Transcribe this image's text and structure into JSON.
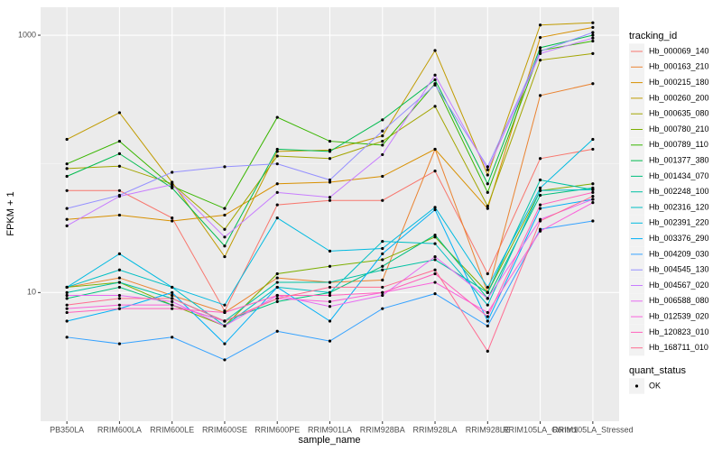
{
  "chart_data": {
    "type": "line",
    "x_label": "sample_name",
    "y_label": "FPKM + 1",
    "categories": [
      "PB350LA",
      "RRIM600LA",
      "RRIM600LE",
      "RRIM600SE",
      "RRIM600PE",
      "RRIM901LA",
      "RRIM928BA",
      "RRIM928LA",
      "RRIM928LE",
      "RRIM105LA_Control",
      "RRIM105LA_Stressed"
    ],
    "log_y": true,
    "ylim": [
      1,
      1650
    ],
    "yticks": [
      10,
      1000
    ],
    "grid": true,
    "legend_title": "tracking_id",
    "legend_position": "right",
    "point_color": "#000000",
    "quant_status": {
      "title": "quant_status",
      "labels": [
        "OK"
      ]
    },
    "series": [
      {
        "name": "Hb_000069_140",
        "color": "#F8766D",
        "values": [
          62,
          62,
          38,
          7.2,
          48,
          52,
          52,
          88,
          14,
          110,
          130
        ]
      },
      {
        "name": "Hb_000163_210",
        "color": "#EA8331",
        "values": [
          11,
          13,
          9.5,
          7,
          13,
          12,
          12.5,
          130,
          10,
          340,
          420
        ]
      },
      {
        "name": "Hb_000215_180",
        "color": "#D89000",
        "values": [
          37,
          40,
          36,
          40,
          70,
          72,
          80,
          130,
          45,
          960,
          1150
        ]
      },
      {
        "name": "Hb_000260_200",
        "color": "#C09B00",
        "values": [
          155,
          250,
          72,
          19,
          125,
          128,
          165,
          760,
          82,
          1200,
          1250
        ]
      },
      {
        "name": "Hb_000635_080",
        "color": "#A3A500",
        "values": [
          92,
          96,
          70,
          31,
          115,
          110,
          150,
          280,
          47,
          640,
          720
        ]
      },
      {
        "name": "Hb_000780_210",
        "color": "#7CAE00",
        "values": [
          11,
          12,
          8,
          5.5,
          14,
          16,
          18,
          27,
          10,
          62,
          70
        ]
      },
      {
        "name": "Hb_000789_110",
        "color": "#39B600",
        "values": [
          100,
          150,
          67,
          45,
          230,
          150,
          140,
          420,
          60,
          760,
          900
        ]
      },
      {
        "name": "Hb_001377_380",
        "color": "#00BB4E",
        "values": [
          80,
          120,
          65,
          23,
          130,
          125,
          220,
          450,
          70,
          800,
          1000
        ]
      },
      {
        "name": "Hb_001434_070",
        "color": "#00BF7D",
        "values": [
          9,
          11,
          8,
          6,
          8.5,
          10,
          16,
          28,
          9,
          57,
          65
        ]
      },
      {
        "name": "Hb_002248_100",
        "color": "#00C1A3",
        "values": [
          10,
          12,
          9,
          6,
          12,
          12,
          15,
          18,
          10,
          75,
          63
        ]
      },
      {
        "name": "Hb_002316_120",
        "color": "#00BFC4",
        "values": [
          11,
          15,
          11,
          5.5,
          11,
          10,
          25,
          24,
          8,
          62,
          63
        ]
      },
      {
        "name": "Hb_002391_220",
        "color": "#00BAE0",
        "values": [
          11,
          20,
          11,
          8,
          38,
          21,
          22,
          46,
          11,
          65,
          155
        ]
      },
      {
        "name": "Hb_003376_290",
        "color": "#00B0F6",
        "values": [
          6,
          7.5,
          10,
          4,
          11,
          6,
          20,
          44,
          6,
          45,
          53
        ]
      },
      {
        "name": "Hb_004209_030",
        "color": "#35A2FF",
        "values": [
          4.5,
          4,
          4.5,
          3,
          5,
          4.2,
          7.5,
          9.8,
          5.5,
          31,
          36
        ]
      },
      {
        "name": "Hb_004545_130",
        "color": "#9590FF",
        "values": [
          45,
          57,
          86,
          95,
          100,
          75,
          180,
          410,
          95,
          750,
          1050
        ]
      },
      {
        "name": "Hb_004567_020",
        "color": "#C77CFF",
        "values": [
          33,
          56,
          69,
          27,
          60,
          55,
          118,
          490,
          90,
          720,
          950
        ]
      },
      {
        "name": "Hb_006588_080",
        "color": "#E76BF3",
        "values": [
          9.5,
          9.5,
          8.5,
          5.5,
          9.5,
          7.8,
          9.5,
          19,
          9,
          37,
          53
        ]
      },
      {
        "name": "Hb_012539_020",
        "color": "#FA62DB",
        "values": [
          7.5,
          8,
          8,
          6,
          9,
          8.5,
          10,
          12,
          7,
          30,
          50
        ]
      },
      {
        "name": "Hb_120823_010",
        "color": "#FF62BC",
        "values": [
          7,
          7.5,
          7.5,
          7,
          9.5,
          9.5,
          10,
          14,
          6.5,
          48,
          60
        ]
      },
      {
        "name": "Hb_168711_010",
        "color": "#FF6C91",
        "values": [
          8,
          9,
          9,
          6,
          9,
          11,
          11,
          15,
          3.5,
          36,
          56
        ]
      }
    ]
  }
}
